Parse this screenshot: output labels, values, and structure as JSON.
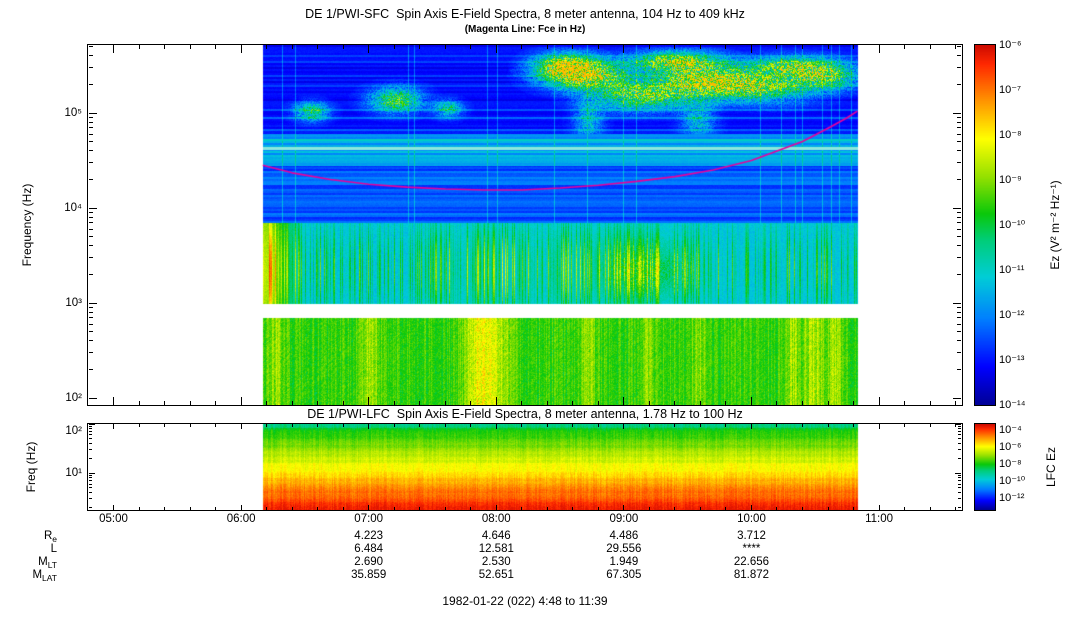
{
  "footer": "1982-01-22 (022) 4:48 to 11:39",
  "chart_data": [
    {
      "type": "heatmap",
      "panel": "SFC",
      "title": "DE 1/PWI-SFC  Spin Axis E-Field Spectra, 8 meter antenna, 104 Hz to 409 kHz",
      "subtitle": "(Magenta Line: Fce in Hz)",
      "ylabel": "Frequency (Hz)",
      "y_unit": "Hz",
      "y_log_range": [
        2.0,
        5.61
      ],
      "x_time_range": [
        "04:48",
        "11:39"
      ],
      "data_time_span_hours": [
        6.17,
        10.83
      ],
      "x_tick_hours": [
        5,
        6,
        7,
        8,
        9,
        10,
        11
      ],
      "x_tick_labels": [
        "05:00",
        "06:00",
        "07:00",
        "08:00",
        "09:00",
        "10:00",
        "11:00"
      ],
      "y_tick_logs": [
        5,
        4,
        3,
        2
      ],
      "y_tick_labels": [
        "10⁵",
        "10⁴",
        "10³",
        "10²"
      ],
      "colorbar": {
        "label": "Ez (V² m⁻² Hz⁻¹)",
        "range_log": [
          -6,
          -14
        ],
        "tick_labels": [
          "10⁻⁶",
          "10⁻⁷",
          "10⁻⁸",
          "10⁻⁹",
          "10⁻¹⁰",
          "10⁻¹¹",
          "10⁻¹²",
          "10⁻¹³",
          "10⁻¹⁴"
        ]
      },
      "fce_line": {
        "label": "Fce in Hz",
        "color": "#e8009c",
        "points_hour_log10hz": [
          [
            6.17,
            4.45
          ],
          [
            6.4,
            4.37
          ],
          [
            6.7,
            4.3
          ],
          [
            7.0,
            4.25
          ],
          [
            7.3,
            4.22
          ],
          [
            7.6,
            4.2
          ],
          [
            7.9,
            4.19
          ],
          [
            8.2,
            4.19
          ],
          [
            8.5,
            4.21
          ],
          [
            8.8,
            4.24
          ],
          [
            9.1,
            4.28
          ],
          [
            9.4,
            4.33
          ],
          [
            9.7,
            4.4
          ],
          [
            10.0,
            4.5
          ],
          [
            10.2,
            4.6
          ],
          [
            10.4,
            4.7
          ],
          [
            10.6,
            4.84
          ],
          [
            10.75,
            4.95
          ],
          [
            10.83,
            5.02
          ]
        ]
      },
      "features": [
        "no data before 06:10 and after 10:50 (white)",
        "broadband green VLF emission 104-700 Hz for the whole pass, brightest (yellow) near 07:50 and 10:20-10:40",
        "instrument gap band 700 Hz - 1 kHz (white)",
        "cyan band 1-7 kHz with green vertical striations (hiss/chorus), strongest 06:10-06:30 and 07:30-09:10",
        "horizontally banded blue interference lines 7-60 kHz with bright cyan line near 43 kHz",
        "dark blue background above 60 kHz with patchy green auroral kilometric radiation 100-400 kHz, mainly 07:00-10:50",
        "magenta Fce trace dips to ~15 kHz near 08:00 and rises to ~100 kHz by 10:50"
      ],
      "render": {
        "bands": {
          "vlf": {
            "log": [
              2.0,
              2.85
            ],
            "base": 0.46
          },
          "gap": {
            "log": [
              2.85,
              3.0
            ]
          },
          "hiss": {
            "log": [
              3.0,
              3.85
            ],
            "base": 0.32
          },
          "stripes_mid": {
            "log": [
              3.85,
              4.45
            ],
            "base": 0.15
          },
          "stripes_light": {
            "log": [
              4.45,
              4.78
            ],
            "base": 0.23,
            "white_line_log": 4.63
          },
          "dark_top": {
            "log": [
              4.78,
              5.72
            ],
            "base": 0.085
          }
        },
        "akr_patches": [
          [
            6.55,
            5.02,
            0.13,
            0.1,
            0.4
          ],
          [
            7.21,
            5.14,
            0.2,
            0.13,
            0.48
          ],
          [
            7.62,
            5.05,
            0.11,
            0.09,
            0.35
          ],
          [
            8.54,
            5.5,
            0.24,
            0.13,
            0.55
          ],
          [
            8.7,
            5.4,
            0.33,
            0.15,
            0.6
          ],
          [
            9.13,
            5.18,
            0.38,
            0.15,
            0.48
          ],
          [
            9.39,
            5.55,
            0.33,
            0.1,
            0.52
          ],
          [
            9.6,
            5.36,
            0.38,
            0.18,
            0.55
          ],
          [
            10.07,
            5.28,
            0.41,
            0.16,
            0.48
          ],
          [
            10.29,
            5.5,
            0.31,
            0.1,
            0.45
          ],
          [
            10.58,
            5.4,
            0.27,
            0.14,
            0.45
          ],
          [
            8.72,
            4.92,
            0.11,
            0.2,
            0.25
          ],
          [
            9.58,
            4.92,
            0.13,
            0.18,
            0.25
          ]
        ],
        "vlf_bursts": [
          [
            6.27,
            0.055,
            0.1
          ],
          [
            7.01,
            0.07,
            0.13
          ],
          [
            7.84,
            0.1,
            0.2
          ],
          [
            7.97,
            0.07,
            0.16
          ],
          [
            8.08,
            0.055,
            0.1
          ],
          [
            8.72,
            0.055,
            0.1
          ],
          [
            9.19,
            0.05,
            0.09
          ],
          [
            9.58,
            0.055,
            0.1
          ],
          [
            10.32,
            0.06,
            0.12
          ],
          [
            10.49,
            0.08,
            0.14
          ],
          [
            10.65,
            0.06,
            0.12
          ]
        ],
        "hiss_cluster_hours": [
          7.48,
          9.13
        ],
        "hiss_left_blob_hour_max": 6.48,
        "hiss_blob": [
          9.19,
          3.35,
          0.35,
          0.3,
          0.18
        ]
      }
    },
    {
      "type": "heatmap",
      "panel": "LFC",
      "title": "DE 1/PWI-LFC  Spin Axis E-Field Spectra, 8 meter antenna, 1.78 Hz to 100 Hz",
      "ylabel": "Freq (Hz)",
      "y_log_range": [
        0.25,
        2.0
      ],
      "x_time_range": [
        "04:48",
        "11:39"
      ],
      "data_time_span_hours": [
        6.17,
        10.83
      ],
      "y_tick_logs": [
        2,
        1
      ],
      "y_tick_labels": [
        "10²",
        "10¹"
      ],
      "colorbar": {
        "label": "LFC Ez",
        "range_log": [
          -4,
          -12
        ],
        "tick_labels": [
          "10⁻⁴",
          "10⁻⁶",
          "10⁻⁸",
          "10⁻¹⁰",
          "10⁻¹²"
        ]
      },
      "features": [
        "power increases toward low frequency: green near 100 Hz through yellow and orange to saturated red below ~5 Hz, uniform across 06:10-10:50"
      ],
      "render": {
        "v_top": 0.5,
        "v_span": 0.45
      }
    }
  ],
  "ephemeris": {
    "column_hours": [
      7,
      8,
      9,
      10
    ],
    "columns": [
      "07:00",
      "08:00",
      "09:00",
      "10:00"
    ],
    "rows": [
      {
        "label": "R",
        "sub": "e",
        "values": [
          "4.223",
          "4.646",
          "4.486",
          "3.712"
        ]
      },
      {
        "label": "L",
        "sub": "",
        "values": [
          "6.484",
          "12.581",
          "29.556",
          "****"
        ]
      },
      {
        "label": "M",
        "sub": "LT",
        "values": [
          "2.690",
          "2.530",
          "1.949",
          "22.656"
        ]
      },
      {
        "label": "M",
        "sub": "LAT",
        "values": [
          "35.859",
          "52.651",
          "67.305",
          "81.872"
        ]
      }
    ]
  }
}
